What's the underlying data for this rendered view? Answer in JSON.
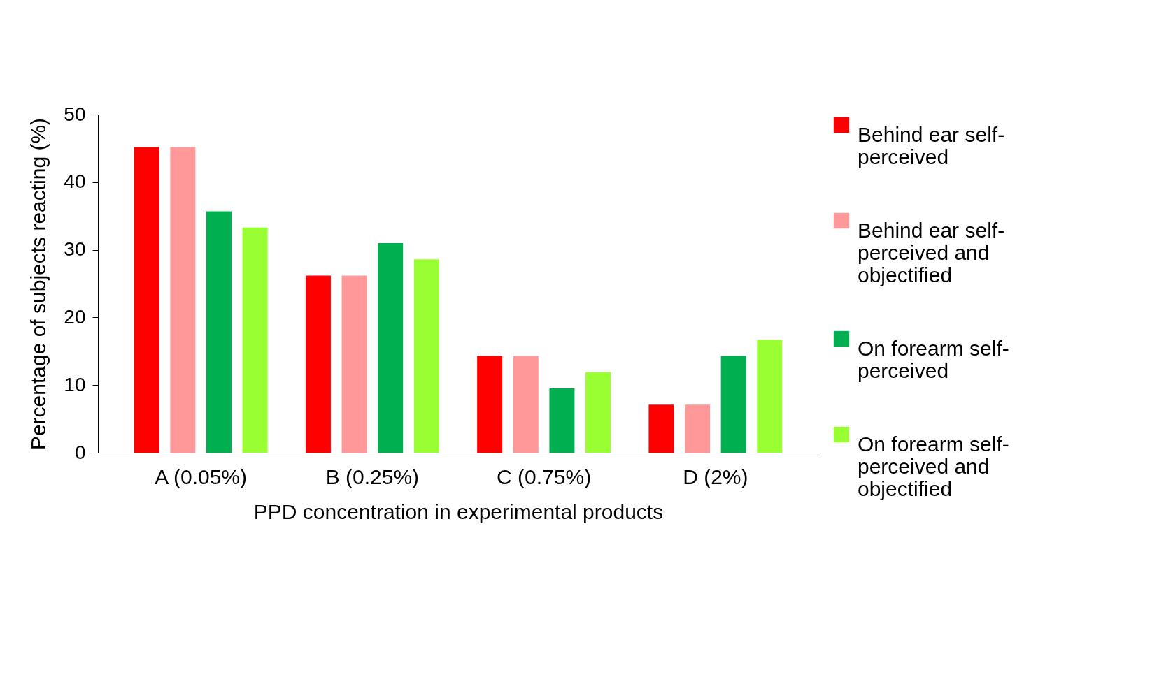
{
  "chart_data": {
    "type": "bar",
    "xlabel": "PPD concentration in experimental products",
    "ylabel": "Percentage of subjects reacting (%)",
    "categories": [
      "A (0.05%)",
      "B (0.25%)",
      "C (0.75%)",
      "D (2%)"
    ],
    "series": [
      {
        "name": "Behind ear self-perceived",
        "color": "#ff0000",
        "values": [
          45.2,
          26.2,
          14.3,
          7.1
        ]
      },
      {
        "name": "Behind ear self-perceived and objectified",
        "color": "#ff9999",
        "values": [
          45.2,
          26.2,
          14.3,
          7.1
        ]
      },
      {
        "name": "On forearm self-perceived",
        "color": "#00b050",
        "values": [
          35.7,
          31.0,
          9.5,
          14.3
        ]
      },
      {
        "name": "On forearm self-perceived and objectified",
        "color": "#99ff33",
        "values": [
          33.3,
          28.6,
          11.9,
          16.7
        ]
      }
    ],
    "ylim": [
      0,
      50
    ],
    "yticks": [
      0,
      10,
      20,
      30,
      40,
      50
    ],
    "grid": false,
    "legend": "right"
  }
}
